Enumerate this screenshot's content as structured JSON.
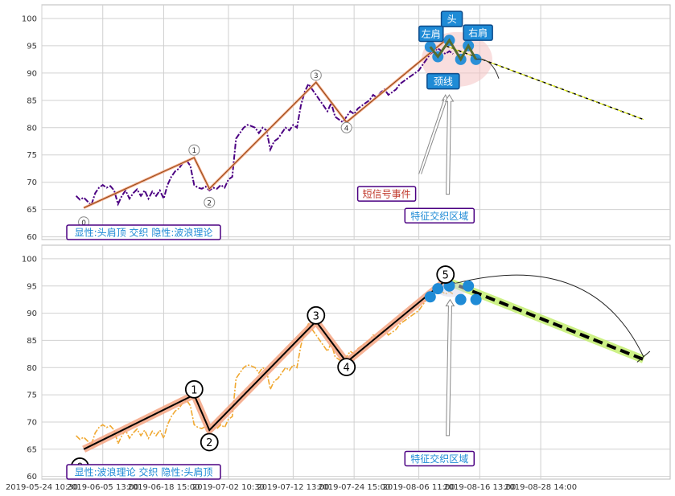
{
  "chart_data": [
    {
      "type": "line",
      "panel": "top",
      "ylim": [
        59.5,
        102.5
      ],
      "yticks": [
        60,
        65,
        70,
        75,
        80,
        85,
        90,
        95,
        100
      ],
      "grid": true,
      "colors": {
        "price": "#4b0082",
        "wave": "#8b4513",
        "projection": "#556b00",
        "zone": "#f4c2c2",
        "marker": "#1f8bd6"
      },
      "price_series": [
        [
          0.5,
          67.5
        ],
        [
          1.0,
          66.8
        ],
        [
          1.5,
          67.2
        ],
        [
          2.0,
          66.5
        ],
        [
          2.5,
          65.8
        ],
        [
          3.0,
          68.0
        ],
        [
          3.5,
          69.0
        ],
        [
          4.0,
          69.5
        ],
        [
          4.5,
          69.0
        ],
        [
          5.0,
          69.3
        ],
        [
          5.5,
          68.5
        ],
        [
          6.0,
          66.0
        ],
        [
          6.5,
          67.5
        ],
        [
          7.0,
          68.5
        ],
        [
          7.5,
          67.0
        ],
        [
          8.0,
          68.0
        ],
        [
          8.5,
          68.7
        ],
        [
          9.0,
          67.5
        ],
        [
          9.5,
          68.5
        ],
        [
          10.0,
          67.0
        ],
        [
          10.5,
          68.3
        ],
        [
          11.0,
          67.5
        ],
        [
          11.5,
          68.5
        ],
        [
          12.0,
          67.0
        ],
        [
          12.5,
          69.5
        ],
        [
          13.0,
          71.0
        ],
        [
          13.5,
          72.0
        ],
        [
          14.0,
          72.5
        ],
        [
          14.5,
          73.5
        ],
        [
          15.0,
          74.0
        ],
        [
          15.5,
          73.0
        ],
        [
          16.0,
          69.5
        ],
        [
          16.5,
          69.0
        ],
        [
          17.0,
          68.8
        ],
        [
          17.5,
          69.2
        ],
        [
          18.0,
          68.5
        ],
        [
          18.5,
          69.0
        ],
        [
          19.0,
          68.8
        ],
        [
          19.5,
          69.5
        ],
        [
          20.0,
          69.0
        ],
        [
          20.5,
          70.5
        ],
        [
          21.0,
          71.0
        ],
        [
          21.5,
          78.0
        ],
        [
          22.0,
          79.0
        ],
        [
          22.5,
          80.0
        ],
        [
          23.0,
          80.5
        ],
        [
          23.5,
          80.3
        ],
        [
          24.0,
          80.0
        ],
        [
          24.5,
          79.0
        ],
        [
          25.0,
          80.0
        ],
        [
          25.5,
          79.5
        ],
        [
          26.0,
          76.0
        ],
        [
          26.5,
          77.5
        ],
        [
          27.0,
          78.0
        ],
        [
          27.5,
          79.0
        ],
        [
          28.0,
          80.0
        ],
        [
          28.5,
          79.5
        ],
        [
          29.0,
          80.5
        ],
        [
          29.5,
          80.0
        ],
        [
          30.0,
          84.0
        ],
        [
          30.5,
          86.5
        ],
        [
          31.0,
          88.0
        ],
        [
          31.5,
          87.0
        ],
        [
          32.0,
          86.0
        ],
        [
          32.5,
          85.0
        ],
        [
          33.0,
          84.0
        ],
        [
          33.5,
          83.0
        ],
        [
          34.0,
          84.5
        ],
        [
          34.5,
          82.0
        ],
        [
          35.0,
          81.5
        ],
        [
          35.5,
          81.0
        ],
        [
          36.0,
          82.0
        ],
        [
          36.5,
          83.0
        ],
        [
          37.0,
          82.5
        ],
        [
          37.5,
          83.5
        ],
        [
          38.0,
          84.0
        ],
        [
          38.5,
          84.5
        ],
        [
          39.0,
          85.0
        ],
        [
          39.5,
          86.0
        ],
        [
          40.0,
          85.5
        ],
        [
          40.5,
          86.5
        ],
        [
          41.0,
          87.0
        ],
        [
          41.5,
          86.0
        ],
        [
          42.0,
          86.5
        ],
        [
          42.5,
          87.0
        ],
        [
          43.0,
          88.0
        ],
        [
          43.5,
          88.5
        ],
        [
          44.0,
          89.0
        ],
        [
          44.5,
          89.5
        ],
        [
          45.0,
          90.0
        ],
        [
          45.5,
          90.5
        ],
        [
          46.0,
          91.5
        ],
        [
          46.5,
          92.5
        ],
        [
          47.0,
          93.5
        ],
        [
          47.5,
          94.0
        ],
        [
          48.0,
          94.5
        ],
        [
          48.5,
          94.0
        ],
        [
          49.0,
          93.5
        ],
        [
          49.5,
          94.0
        ],
        [
          50.0,
          93.5
        ]
      ],
      "wave_points": [
        [
          1.5,
          65.3
        ],
        [
          16.0,
          74.5
        ],
        [
          18.0,
          68.8
        ],
        [
          32.0,
          88.3
        ],
        [
          36.0,
          81.0
        ],
        [
          49.0,
          96.0
        ]
      ],
      "wave_labels": [
        {
          "x": 1.5,
          "y": 62.7,
          "text": "0"
        },
        {
          "x": 16.0,
          "y": 75.9,
          "text": "1"
        },
        {
          "x": 18.0,
          "y": 66.3,
          "text": "2"
        },
        {
          "x": 32.0,
          "y": 89.6,
          "text": "3"
        },
        {
          "x": 36.0,
          "y": 80.0,
          "text": "4"
        }
      ],
      "projection": [
        [
          49.0,
          95.0
        ],
        [
          75.0,
          81.5
        ]
      ],
      "hs_points": [
        [
          47.0,
          94.8
        ],
        [
          48.0,
          93.0
        ],
        [
          49.5,
          96.0
        ],
        [
          51.0,
          92.5
        ],
        [
          52.0,
          95.0
        ],
        [
          53.0,
          92.5
        ]
      ],
      "hs_labels": {
        "left_shoulder": "左肩",
        "head": "头",
        "right_shoulder": "右肩",
        "neckline": "颈线"
      },
      "callouts": {
        "signal_event": "短信号事件",
        "feature_zone": "特征交织区域"
      },
      "caption": "显性:头肩顶 交织 隐性:波浪理论"
    },
    {
      "type": "line",
      "panel": "bottom",
      "ylim": [
        59.5,
        102.5
      ],
      "yticks": [
        60,
        65,
        70,
        75,
        80,
        85,
        90,
        95,
        100
      ],
      "grid": true,
      "colors": {
        "price": "#f0a830",
        "wave": "#000000",
        "wave_halo": "#f4a582",
        "projection": "#000000",
        "projection_halo": "#c8f07a",
        "marker": "#1f8bd6"
      },
      "wave_points": [
        [
          1.5,
          65.0
        ],
        [
          16.0,
          75.0
        ],
        [
          18.0,
          68.5
        ],
        [
          32.0,
          88.5
        ],
        [
          36.0,
          81.0
        ],
        [
          49.0,
          96.0
        ]
      ],
      "wave_labels": [
        {
          "x": 1.0,
          "y": 61.8,
          "text": "0"
        },
        {
          "x": 16.0,
          "y": 76.0,
          "text": "1"
        },
        {
          "x": 18.0,
          "y": 66.3,
          "text": "2"
        },
        {
          "x": 32.0,
          "y": 89.6,
          "text": "3"
        },
        {
          "x": 36.0,
          "y": 80.1,
          "text": "4"
        },
        {
          "x": 49.0,
          "y": 97.1,
          "text": "5"
        }
      ],
      "projection": [
        [
          49.0,
          96.0
        ],
        [
          75.0,
          81.5
        ]
      ],
      "hs_points": [
        [
          47.0,
          93.0
        ],
        [
          48.0,
          94.5
        ],
        [
          49.5,
          95.0
        ],
        [
          51.0,
          92.5
        ],
        [
          52.0,
          95.0
        ],
        [
          53.0,
          92.5
        ]
      ],
      "callouts": {
        "feature_zone": "特征交织区域"
      },
      "caption": "显性:波浪理论 交织 隐性:头肩顶"
    }
  ],
  "x_axis": {
    "xlim": [
      -4.0,
      78.5
    ],
    "ticks": [
      {
        "x": -4.0,
        "label": "2019-05-24 10:30"
      },
      {
        "x": 4.0,
        "label": "2019-06-05 13:00"
      },
      {
        "x": 12.0,
        "label": "2019-06-18 15:00"
      },
      {
        "x": 20.5,
        "label": "2019-07-02 10:30"
      },
      {
        "x": 29.0,
        "label": "2019-07-12 13:00"
      },
      {
        "x": 37.0,
        "label": "2019-07-24 15:00"
      },
      {
        "x": 45.5,
        "label": "2019-08-06 11:00"
      },
      {
        "x": 53.5,
        "label": "2019-08-16 13:00"
      },
      {
        "x": 61.5,
        "label": "2019-08-28 14:00"
      }
    ]
  }
}
